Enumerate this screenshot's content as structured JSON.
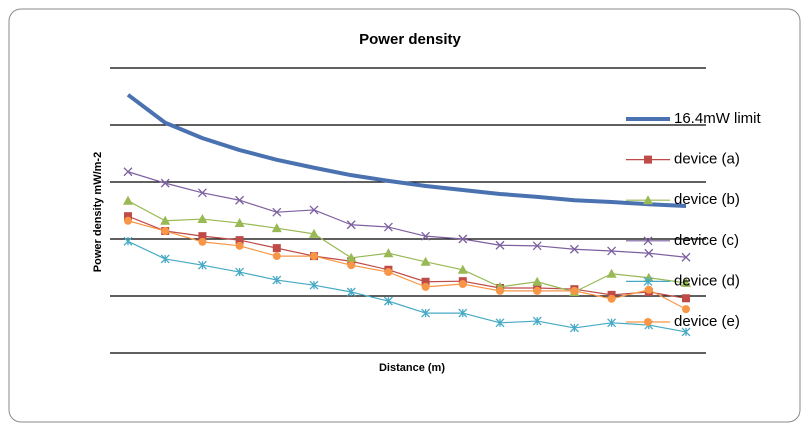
{
  "chart_data": {
    "type": "line",
    "title": "Power density",
    "x_label": "Distance (m)",
    "y_label": "Power density mW/m-2",
    "categories": [
      null,
      null,
      null,
      null,
      null,
      null,
      null,
      null,
      null,
      null,
      null,
      null,
      null,
      null,
      null,
      null
    ],
    "ylim": [
      0,
      5
    ],
    "yticks": [
      0,
      1,
      2,
      3,
      4,
      5
    ],
    "grid": true,
    "legend": "right",
    "series": [
      {
        "name": "16.4mW limit",
        "color": "#4a72b0",
        "marker": "none",
        "values": [
          4.53,
          4.04,
          3.77,
          3.56,
          3.39,
          3.25,
          3.12,
          3.02,
          2.93,
          2.86,
          2.79,
          2.74,
          2.68,
          2.65,
          2.61,
          2.58
        ]
      },
      {
        "name": "device (a)",
        "color": "#be4b48",
        "marker": "square",
        "values": [
          2.4,
          2.14,
          2.05,
          1.98,
          1.84,
          1.7,
          1.61,
          1.46,
          1.25,
          1.26,
          1.14,
          1.14,
          1.12,
          1.02,
          1.07,
          0.96
        ]
      },
      {
        "name": "device (b)",
        "color": "#98b954",
        "marker": "triangle",
        "values": [
          2.67,
          2.32,
          2.35,
          2.28,
          2.19,
          2.09,
          1.67,
          1.75,
          1.6,
          1.46,
          1.16,
          1.25,
          1.07,
          1.39,
          1.32,
          1.23
        ]
      },
      {
        "name": "device (c)",
        "color": "#7d60a0",
        "marker": "x",
        "values": [
          3.18,
          2.98,
          2.81,
          2.68,
          2.47,
          2.51,
          2.25,
          2.21,
          2.05,
          2.0,
          1.89,
          1.88,
          1.82,
          1.79,
          1.75,
          1.68
        ]
      },
      {
        "name": "device (d)",
        "color": "#46aac5",
        "marker": "star",
        "values": [
          1.96,
          1.65,
          1.54,
          1.42,
          1.28,
          1.19,
          1.07,
          0.91,
          0.7,
          0.7,
          0.53,
          0.56,
          0.44,
          0.53,
          0.49,
          0.37
        ]
      },
      {
        "name": "device (e)",
        "color": "#f79646",
        "marker": "circle",
        "values": [
          2.32,
          2.14,
          1.95,
          1.88,
          1.7,
          1.7,
          1.54,
          1.42,
          1.16,
          1.21,
          1.09,
          1.09,
          1.09,
          0.95,
          1.11,
          0.77
        ]
      }
    ]
  }
}
